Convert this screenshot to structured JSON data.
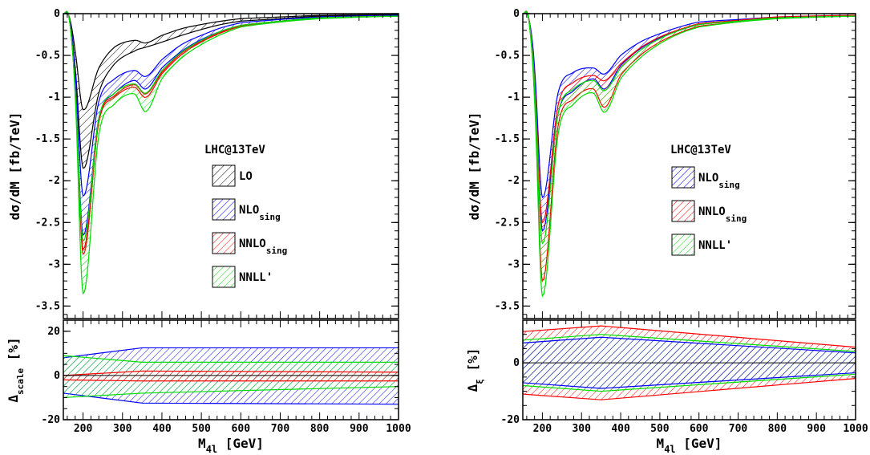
{
  "chart_data": [
    {
      "type": "area",
      "panel": "left",
      "label": "LHC@13TeV",
      "ylabel": "dσ/dM  [fb/TeV]",
      "xlabel": {
        "main": "M",
        "sub": "4l",
        "unit": "  [GeV]"
      },
      "xlim": [
        150,
        1000
      ],
      "ylim": [
        -3.65,
        0
      ],
      "xticks": [
        "200",
        "300",
        "400",
        "500",
        "600",
        "700",
        "800",
        "900",
        "1000"
      ],
      "yticks": [
        "0",
        "-0.5",
        "-1",
        "-1.5",
        "-2",
        "-2.5",
        "-3",
        "-3.5"
      ],
      "series": [
        {
          "name": "LO",
          "color": "#000000",
          "hatch": "black",
          "min": [
            0,
            -0.05,
            -0.65,
            -1.85,
            -0.95,
            -0.6,
            -0.45,
            -0.4,
            -0.34,
            -0.26,
            -0.19,
            -0.13,
            -0.09,
            -0.06,
            -0.03,
            -0.02
          ],
          "max": [
            0,
            -0.04,
            -0.45,
            -1.15,
            -0.65,
            -0.4,
            -0.32,
            -0.35,
            -0.26,
            -0.18,
            -0.13,
            -0.09,
            -0.06,
            -0.04,
            -0.02,
            -0.01
          ]
        },
        {
          "name": "NLO",
          "sub": "sing",
          "color": "#0000ff",
          "hatch": "blue",
          "min": [
            0,
            -0.06,
            -0.9,
            -2.65,
            -1.25,
            -0.95,
            -0.8,
            -0.9,
            -0.65,
            -0.45,
            -0.31,
            -0.21,
            -0.14,
            -0.09,
            -0.05,
            -0.03
          ],
          "max": [
            0,
            -0.05,
            -0.72,
            -2.18,
            -1.05,
            -0.78,
            -0.68,
            -0.75,
            -0.55,
            -0.37,
            -0.26,
            -0.17,
            -0.11,
            -0.07,
            -0.04,
            -0.02
          ]
        },
        {
          "name": "NNLO",
          "sub": "sing",
          "color": "#ff0000",
          "hatch": "red",
          "min": [
            0,
            -0.06,
            -0.95,
            -2.88,
            -1.3,
            -1.0,
            -0.88,
            -1.0,
            -0.72,
            -0.49,
            -0.34,
            -0.23,
            -0.15,
            -0.1,
            -0.05,
            -0.03
          ],
          "max": [
            0,
            -0.06,
            -0.93,
            -2.82,
            -1.27,
            -0.98,
            -0.85,
            -0.96,
            -0.7,
            -0.47,
            -0.33,
            -0.22,
            -0.14,
            -0.09,
            -0.05,
            -0.03
          ]
        },
        {
          "name": "NNLL'",
          "color": "#00dd00",
          "hatch": "green",
          "min": [
            0,
            -0.07,
            -1.0,
            -3.35,
            -1.45,
            -1.08,
            -0.96,
            -1.17,
            -0.78,
            -0.53,
            -0.37,
            -0.25,
            -0.16,
            -0.1,
            -0.06,
            -0.03
          ],
          "max": [
            0,
            -0.06,
            -0.92,
            -2.72,
            -1.25,
            -0.95,
            -0.84,
            -0.95,
            -0.68,
            -0.46,
            -0.32,
            -0.21,
            -0.14,
            -0.09,
            -0.05,
            -0.03
          ]
        }
      ],
      "x": [
        150,
        165,
        180,
        200,
        240,
        280,
        330,
        360,
        400,
        450,
        500,
        550,
        600,
        700,
        800,
        1000
      ],
      "ratio": {
        "ylabel": "Δ",
        "ylabel_sub": "scale",
        "ylabel_unit": " [%]",
        "ylim": [
          -20,
          25
        ],
        "yticks": [
          "20",
          "0",
          "-20"
        ],
        "x": [
          150,
          350,
          1000
        ],
        "series": [
          {
            "name": "NLO",
            "color": "#0000ff",
            "min": [
              -8,
              -12.5,
              -13
            ],
            "max": [
              8,
              12.5,
              12.5
            ]
          },
          {
            "name": "NNLL'",
            "color": "#00dd00",
            "min": [
              -10,
              -8,
              -5
            ],
            "max": [
              9,
              6,
              6
            ]
          },
          {
            "name": "NNLO",
            "color": "#ff0000",
            "min": [
              -2,
              -2.5,
              -2.5
            ],
            "max": [
              0,
              2,
              1.5
            ]
          }
        ]
      }
    },
    {
      "type": "area",
      "panel": "right",
      "label": "LHC@13TeV",
      "ylabel": "dσ/dM  [fb/TeV]",
      "xlabel": {
        "main": "M",
        "sub": "4l",
        "unit": "  [GeV]"
      },
      "xlim": [
        150,
        1000
      ],
      "ylim": [
        -3.65,
        0
      ],
      "xticks": [
        "200",
        "300",
        "400",
        "500",
        "600",
        "700",
        "800",
        "900",
        "1000"
      ],
      "yticks": [
        "0",
        "-0.5",
        "-1",
        "-1.5",
        "-2",
        "-2.5",
        "-3",
        "-3.5"
      ],
      "series": [
        {
          "name": "NLO",
          "sub": "sing",
          "color": "#0000ff",
          "hatch": "blue",
          "min": [
            0,
            -0.06,
            -0.9,
            -2.6,
            -1.2,
            -0.92,
            -0.78,
            -0.9,
            -0.62,
            -0.42,
            -0.29,
            -0.2,
            -0.13,
            -0.08,
            -0.05,
            -0.03
          ],
          "max": [
            0,
            -0.05,
            -0.65,
            -2.2,
            -0.95,
            -0.7,
            -0.65,
            -0.72,
            -0.5,
            -0.34,
            -0.24,
            -0.16,
            -0.1,
            -0.07,
            -0.04,
            -0.02
          ]
        },
        {
          "name": "NNLO",
          "sub": "sing",
          "color": "#ff0000",
          "hatch": "red",
          "min": [
            0,
            -0.06,
            -1.0,
            -3.2,
            -1.35,
            -1.02,
            -0.9,
            -1.12,
            -0.74,
            -0.5,
            -0.34,
            -0.23,
            -0.15,
            -0.1,
            -0.05,
            -0.03
          ],
          "max": [
            0,
            -0.05,
            -0.8,
            -2.5,
            -1.1,
            -0.82,
            -0.74,
            -0.8,
            -0.6,
            -0.41,
            -0.28,
            -0.19,
            -0.12,
            -0.08,
            -0.04,
            -0.02
          ]
        },
        {
          "name": "NNLL'",
          "color": "#00dd00",
          "hatch": "green",
          "min": [
            0,
            -0.07,
            -1.05,
            -3.38,
            -1.45,
            -1.08,
            -0.95,
            -1.18,
            -0.78,
            -0.53,
            -0.36,
            -0.24,
            -0.16,
            -0.1,
            -0.06,
            -0.03
          ],
          "max": [
            0,
            -0.06,
            -0.85,
            -2.75,
            -1.2,
            -0.9,
            -0.8,
            -0.92,
            -0.65,
            -0.44,
            -0.3,
            -0.2,
            -0.13,
            -0.09,
            -0.05,
            -0.03
          ]
        }
      ],
      "x": [
        150,
        165,
        180,
        200,
        240,
        280,
        330,
        360,
        400,
        450,
        500,
        550,
        600,
        700,
        800,
        1000
      ],
      "ratio": {
        "ylabel": "Δ",
        "ylabel_sub": "ξ",
        "ylabel_unit": " [%]",
        "ylim": [
          -20,
          15
        ],
        "yticks": [
          "0",
          "-20"
        ],
        "x": [
          150,
          350,
          1000
        ],
        "series": [
          {
            "name": "NNLO",
            "color": "#ff0000",
            "min": [
              -11,
              -13,
              -5.5
            ],
            "max": [
              11,
              13,
              5.5
            ]
          },
          {
            "name": "NNLL'",
            "color": "#00dd00",
            "min": [
              -8,
              -10,
              -4
            ],
            "max": [
              8,
              10,
              4
            ]
          },
          {
            "name": "NLO",
            "color": "#0000ff",
            "min": [
              -7,
              -9,
              -3.5
            ],
            "max": [
              7,
              9,
              3.5
            ]
          }
        ]
      }
    }
  ]
}
